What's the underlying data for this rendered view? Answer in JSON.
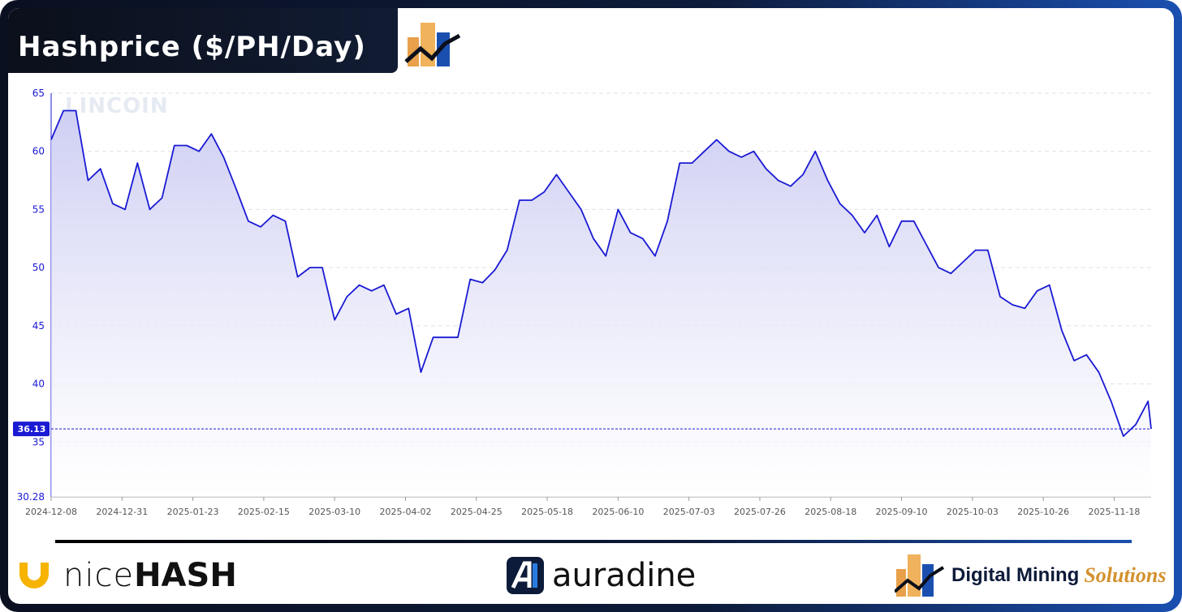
{
  "chart_data": {
    "type": "line",
    "title": "Hashprice ($/PH/Day)",
    "watermark": "LINCOIN",
    "x": [
      "2024-12-08",
      "2024-12-12",
      "2024-12-16",
      "2024-12-20",
      "2024-12-24",
      "2024-12-28",
      "2025-01-01",
      "2025-01-05",
      "2025-01-09",
      "2025-01-13",
      "2025-01-17",
      "2025-01-21",
      "2025-01-25",
      "2025-01-29",
      "2025-02-02",
      "2025-02-06",
      "2025-02-10",
      "2025-02-14",
      "2025-02-18",
      "2025-02-22",
      "2025-02-26",
      "2025-03-02",
      "2025-03-06",
      "2025-03-10",
      "2025-03-14",
      "2025-03-18",
      "2025-03-22",
      "2025-03-26",
      "2025-03-30",
      "2025-04-03",
      "2025-04-07",
      "2025-04-11",
      "2025-04-15",
      "2025-04-19",
      "2025-04-23",
      "2025-04-27",
      "2025-05-01",
      "2025-05-05",
      "2025-05-09",
      "2025-05-13",
      "2025-05-17",
      "2025-05-21",
      "2025-05-25",
      "2025-05-29",
      "2025-06-02",
      "2025-06-06",
      "2025-06-10",
      "2025-06-14",
      "2025-06-18",
      "2025-06-22",
      "2025-06-26",
      "2025-06-30",
      "2025-07-04",
      "2025-07-08",
      "2025-07-12",
      "2025-07-16",
      "2025-07-20",
      "2025-07-24",
      "2025-07-28",
      "2025-08-01",
      "2025-08-05",
      "2025-08-09",
      "2025-08-13",
      "2025-08-17",
      "2025-08-21",
      "2025-08-25",
      "2025-08-29",
      "2025-09-02",
      "2025-09-06",
      "2025-09-10",
      "2025-09-14",
      "2025-09-18",
      "2025-09-22",
      "2025-09-26",
      "2025-09-30",
      "2025-10-04",
      "2025-10-08",
      "2025-10-12",
      "2025-10-16",
      "2025-10-20",
      "2025-10-24",
      "2025-10-28",
      "2025-11-01",
      "2025-11-05",
      "2025-11-09",
      "2025-11-13",
      "2025-11-17",
      "2025-11-21",
      "2025-11-25",
      "2025-11-29",
      "2025-11-30"
    ],
    "series": [
      {
        "name": "Hashprice",
        "color": "#1a1ad4",
        "values": [
          61,
          63.5,
          63.5,
          57.5,
          58.5,
          55.5,
          55,
          59,
          55,
          56,
          60.5,
          60.5,
          60,
          61.5,
          59.5,
          56.8,
          54,
          53.5,
          54.5,
          54,
          49.2,
          50,
          50,
          45.5,
          47.5,
          48.5,
          48,
          48.5,
          46,
          46.5,
          41,
          44,
          44,
          44,
          49,
          48.7,
          49.8,
          51.5,
          55.8,
          55.8,
          56.5,
          58,
          56.5,
          55,
          52.5,
          51,
          55,
          53,
          52.5,
          51,
          54,
          59,
          59,
          60,
          61,
          60,
          59.5,
          60,
          58.5,
          57.5,
          57,
          58,
          60,
          57.5,
          55.5,
          54.5,
          53,
          54.5,
          51.8,
          54,
          54,
          52,
          50,
          49.5,
          50.5,
          51.5,
          51.5,
          47.5,
          46.8,
          46.5,
          48,
          48.5,
          44.6,
          42,
          42.5,
          41,
          38.5,
          35.5,
          36.5,
          38.5,
          36.13
        ]
      }
    ],
    "current_value": 36.13,
    "xlim": [
      "2024-12-08",
      "2025-11-30"
    ],
    "xticks": [
      "2024-12-08",
      "2024-12-31",
      "2025-01-23",
      "2025-02-15",
      "2025-03-10",
      "2025-04-02",
      "2025-04-25",
      "2025-05-18",
      "2025-06-10",
      "2025-07-03",
      "2025-07-26",
      "2025-08-18",
      "2025-09-10",
      "2025-10-03",
      "2025-10-26",
      "2025-11-18"
    ],
    "ylim": [
      30.28,
      65
    ],
    "yticks": [
      30.28,
      35,
      40,
      45,
      50,
      55,
      60,
      65
    ],
    "grid": true
  },
  "footer": {
    "nicehash": [
      "nice",
      "HASH"
    ],
    "auradine": "auradine",
    "dms": [
      "Digital Mining",
      "Solutions"
    ]
  }
}
